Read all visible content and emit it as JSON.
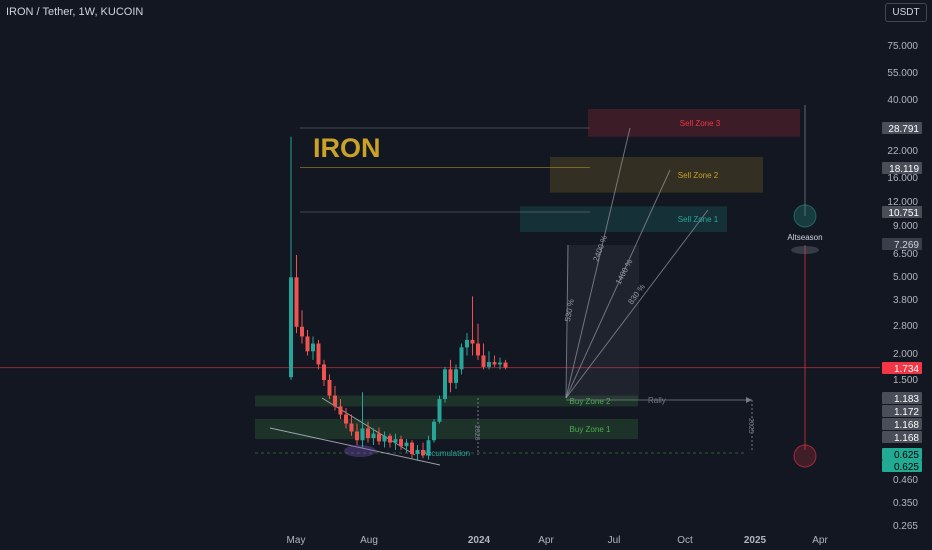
{
  "header": {
    "title": "IRON / Tether, 1W, KUCOIN",
    "currency_button": "USDT"
  },
  "colors": {
    "background": "#131722",
    "up": "#26a69a",
    "down": "#ef5350",
    "price_line": "#f23645",
    "brand_title": "#c9a227"
  },
  "chart_data": {
    "type": "candlestick",
    "title": "IRON",
    "y_scale": "log",
    "y_ticks": [
      "75.000",
      "55.000",
      "40.000",
      "22.000",
      "16.000",
      "12.000",
      "9.000",
      "6.500",
      "5.000",
      "3.800",
      "2.800",
      "2.000",
      "1.500",
      "0.460",
      "0.350",
      "0.265"
    ],
    "x_ticks": [
      "May",
      "Aug",
      "2024",
      "Apr",
      "Jul",
      "Oct",
      "2025",
      "Apr"
    ],
    "price_labels": [
      {
        "value": "28.791",
        "color": "#e0e3eb"
      },
      {
        "value": "18.119",
        "color": "#e0e3eb"
      },
      {
        "value": "10.751",
        "color": "#e0e3eb"
      },
      {
        "value": "7.269",
        "color": "#787b86"
      },
      {
        "value": "1.734",
        "color": "#f23645"
      },
      {
        "value": "1.183",
        "color": "#e0e3eb"
      },
      {
        "value": "1.172",
        "color": "#e0e3eb"
      },
      {
        "value": "1.168",
        "color": "#e0e3eb"
      },
      {
        "value": "1.168",
        "color": "#e0e3eb"
      },
      {
        "value": "0.625",
        "color": "#22ab94"
      },
      {
        "value": "0.625",
        "color": "#22ab94"
      }
    ],
    "candles": [
      {
        "o": 1.55,
        "h": 26,
        "l": 1.5,
        "c": 5.0
      },
      {
        "o": 5.0,
        "h": 6.5,
        "l": 2.6,
        "c": 2.8
      },
      {
        "o": 2.8,
        "h": 3.4,
        "l": 2.3,
        "c": 2.5
      },
      {
        "o": 2.5,
        "h": 2.7,
        "l": 2.0,
        "c": 2.1
      },
      {
        "o": 2.1,
        "h": 2.5,
        "l": 1.9,
        "c": 2.3
      },
      {
        "o": 2.3,
        "h": 2.4,
        "l": 1.7,
        "c": 1.8
      },
      {
        "o": 1.8,
        "h": 1.9,
        "l": 1.4,
        "c": 1.5
      },
      {
        "o": 1.5,
        "h": 1.6,
        "l": 1.2,
        "c": 1.25
      },
      {
        "o": 1.25,
        "h": 1.4,
        "l": 1.05,
        "c": 1.1
      },
      {
        "o": 1.1,
        "h": 1.2,
        "l": 0.95,
        "c": 1.0
      },
      {
        "o": 1.0,
        "h": 1.08,
        "l": 0.85,
        "c": 0.9
      },
      {
        "o": 0.9,
        "h": 1.0,
        "l": 0.78,
        "c": 0.82
      },
      {
        "o": 0.82,
        "h": 0.9,
        "l": 0.7,
        "c": 0.74
      },
      {
        "o": 0.74,
        "h": 1.3,
        "l": 0.68,
        "c": 0.85
      },
      {
        "o": 0.85,
        "h": 0.92,
        "l": 0.72,
        "c": 0.76
      },
      {
        "o": 0.76,
        "h": 0.85,
        "l": 0.7,
        "c": 0.8
      },
      {
        "o": 0.8,
        "h": 0.86,
        "l": 0.7,
        "c": 0.73
      },
      {
        "o": 0.73,
        "h": 0.82,
        "l": 0.68,
        "c": 0.78
      },
      {
        "o": 0.78,
        "h": 0.8,
        "l": 0.68,
        "c": 0.72
      },
      {
        "o": 0.72,
        "h": 0.8,
        "l": 0.66,
        "c": 0.75
      },
      {
        "o": 0.75,
        "h": 0.78,
        "l": 0.66,
        "c": 0.69
      },
      {
        "o": 0.69,
        "h": 0.75,
        "l": 0.64,
        "c": 0.72
      },
      {
        "o": 0.72,
        "h": 0.74,
        "l": 0.6,
        "c": 0.63
      },
      {
        "o": 0.63,
        "h": 0.7,
        "l": 0.58,
        "c": 0.66
      },
      {
        "o": 0.66,
        "h": 0.72,
        "l": 0.6,
        "c": 0.62
      },
      {
        "o": 0.62,
        "h": 0.78,
        "l": 0.59,
        "c": 0.74
      },
      {
        "o": 0.74,
        "h": 0.95,
        "l": 0.72,
        "c": 0.92
      },
      {
        "o": 0.92,
        "h": 1.25,
        "l": 0.9,
        "c": 1.2
      },
      {
        "o": 1.2,
        "h": 1.75,
        "l": 1.15,
        "c": 1.7
      },
      {
        "o": 1.7,
        "h": 1.9,
        "l": 1.3,
        "c": 1.45
      },
      {
        "o": 1.45,
        "h": 1.8,
        "l": 1.35,
        "c": 1.7
      },
      {
        "o": 1.7,
        "h": 2.3,
        "l": 1.6,
        "c": 2.2
      },
      {
        "o": 2.2,
        "h": 2.6,
        "l": 2.0,
        "c": 2.4
      },
      {
        "o": 2.4,
        "h": 4.0,
        "l": 2.0,
        "c": 2.3
      },
      {
        "o": 2.3,
        "h": 2.9,
        "l": 1.9,
        "c": 2.0
      },
      {
        "o": 2.0,
        "h": 2.3,
        "l": 1.7,
        "c": 1.75
      },
      {
        "o": 1.75,
        "h": 2.1,
        "l": 1.7,
        "c": 1.85
      },
      {
        "o": 1.85,
        "h": 2.0,
        "l": 1.75,
        "c": 1.8
      },
      {
        "o": 1.8,
        "h": 1.95,
        "l": 1.7,
        "c": 1.84
      },
      {
        "o": 1.84,
        "h": 1.9,
        "l": 1.7,
        "c": 1.734
      }
    ],
    "zones": [
      {
        "name": "Sell Zone 3",
        "low": 26,
        "high": 36,
        "color": "#f23645"
      },
      {
        "name": "Sell Zone 2",
        "low": 13.5,
        "high": 20.5,
        "color": "#c9a227"
      },
      {
        "name": "Sell Zone 1",
        "low": 8.5,
        "high": 11.5,
        "color": "#26a69a"
      },
      {
        "name": "Buy Zone 2",
        "low": 1.1,
        "high": 1.25,
        "color": "#4caf50"
      },
      {
        "name": "Buy Zone 1",
        "low": 0.75,
        "high": 0.95,
        "color": "#4caf50"
      }
    ],
    "annotations": [
      "530 %",
      "2400 %",
      "1400 %",
      "830 %",
      "Rally",
      "Altseason",
      "Accumulation",
      "2026",
      "2025"
    ]
  }
}
